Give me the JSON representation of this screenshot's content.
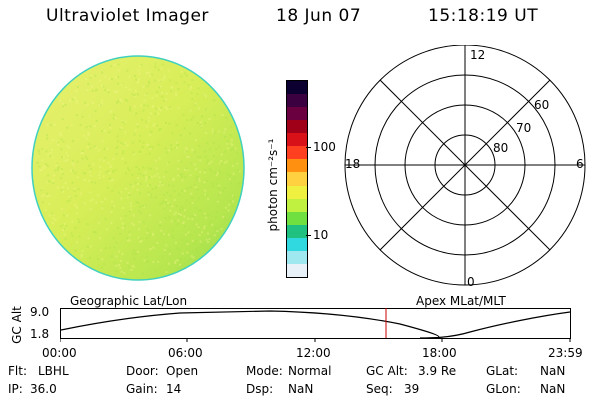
{
  "header": {
    "instrument": "Ultraviolet Imager",
    "date": "18 Jun 07",
    "time": "15:18:19 UT"
  },
  "colorbar": {
    "unit_label": "photon cm⁻²s⁻¹",
    "tick_labels": [
      "100",
      "10"
    ],
    "colors": [
      "#0b0030",
      "#3a0040",
      "#6a0040",
      "#a00018",
      "#d81018",
      "#ff4020",
      "#ff9010",
      "#ffd040",
      "#f0f040",
      "#c0f040",
      "#70e040",
      "#20c080",
      "#30d8e0",
      "#a0e8f0",
      "#e8f0f8"
    ]
  },
  "polar_plot": {
    "mlt_labels": [
      "12",
      "18",
      "6",
      "0"
    ],
    "lat_labels": [
      "60",
      "70",
      "80"
    ]
  },
  "timeline": {
    "left_label": "Geographic Lat/Lon",
    "right_label": "Apex MLat/MLT",
    "y_axis_label": "GC Alt",
    "y_ticks": [
      "9.0",
      "1.8"
    ],
    "x_ticks": [
      "00:00",
      "06:00",
      "12:00",
      "18:00",
      "23:59"
    ],
    "current_marker_color": "#cc0000"
  },
  "status": {
    "flt_label": "Flt:",
    "flt_value": "LBHL",
    "ip_label": "IP:",
    "ip_value": "36.0",
    "door_label": "Door:",
    "door_value": "Open",
    "gain_label": "Gain:",
    "gain_value": "14",
    "mode_label": "Mode:",
    "mode_value": "Normal",
    "dsp_label": "Dsp:",
    "dsp_value": "NaN",
    "gcalt_label": "GC Alt:",
    "gcalt_value": "3.9 Re",
    "seq_label": "Seq:",
    "seq_value": "39",
    "glat_label": "GLat:",
    "glat_value": "NaN",
    "glon_label": "GLon:",
    "glon_value": "NaN"
  }
}
